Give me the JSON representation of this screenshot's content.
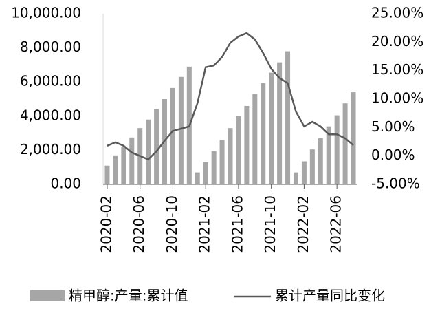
{
  "chart_data": {
    "type": "bar_line",
    "categories": [
      "2020-02",
      null,
      null,
      null,
      "2020-06",
      null,
      null,
      null,
      "2020-10",
      null,
      null,
      null,
      "2021-02",
      null,
      null,
      null,
      "2021-06",
      null,
      null,
      null,
      "2021-10",
      null,
      null,
      null,
      "2022-02",
      null,
      null,
      null,
      "2022-06",
      null,
      null
    ],
    "series": [
      {
        "name": "精甲醇:产量:累计值",
        "color": "#a6a6a6",
        "axis": "y",
        "values": [
          1100,
          1700,
          2200,
          2750,
          3300,
          3800,
          4400,
          5000,
          5650,
          6300,
          6900,
          700,
          1300,
          1950,
          2600,
          3300,
          4000,
          4600,
          5300,
          5950,
          6550,
          7150,
          7800,
          700,
          1350,
          2050,
          2700,
          3400,
          4050,
          4750,
          5400
        ]
      },
      {
        "name": "累计产量同比变化",
        "color": "#595959",
        "axis": "y2",
        "values": [
          1.8,
          2.4,
          1.8,
          0.6,
          0,
          -0.6,
          0.8,
          2.7,
          4.4,
          4.8,
          5.2,
          9.3,
          15.6,
          15.9,
          17.4,
          19.9,
          21.0,
          21.6,
          20.5,
          18.1,
          15.3,
          13.7,
          12.8,
          7.8,
          5.2,
          6.0,
          5.2,
          3.8,
          3.8,
          3.1,
          1.9
        ]
      }
    ],
    "ylim": [
      0,
      10000
    ],
    "yticks": [
      {
        "value": 0,
        "label": "0.00"
      },
      {
        "value": 2000,
        "label": "2,000.00"
      },
      {
        "value": 4000,
        "label": "4,000.00"
      },
      {
        "value": 6000,
        "label": "6,000.00"
      },
      {
        "value": 8000,
        "label": "8,000.00"
      },
      {
        "value": 10000,
        "label": "10,000.00"
      }
    ],
    "y2lim": [
      -5,
      25
    ],
    "y2ticks": [
      {
        "value": -5,
        "label": "-5.00%"
      },
      {
        "value": 0,
        "label": "0.00%"
      },
      {
        "value": 5,
        "label": "5.00%"
      },
      {
        "value": 10,
        "label": "10.00%"
      },
      {
        "value": 15,
        "label": "15.00%"
      },
      {
        "value": 20,
        "label": "20.00%"
      },
      {
        "value": 25,
        "label": "25.00%"
      }
    ],
    "legend": "bottom"
  }
}
